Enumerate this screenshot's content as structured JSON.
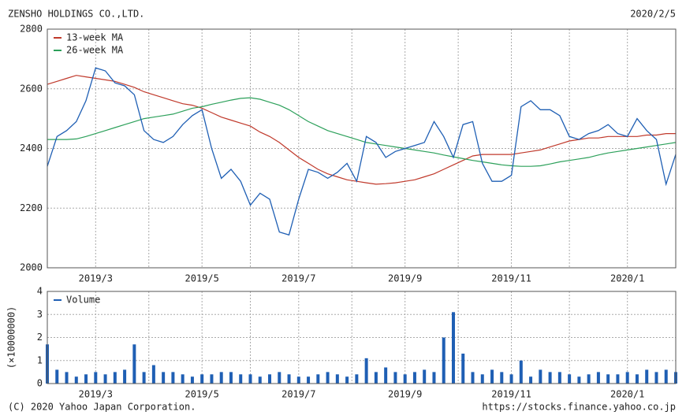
{
  "header": {
    "title": "ZENSHO HOLDINGS CO.,LTD.",
    "date": "2020/2/5"
  },
  "footer": {
    "copyright": "(C) 2020 Yahoo Japan Corporation.",
    "url": "https://stocks.finance.yahoo.co.jp"
  },
  "chart_data": [
    {
      "type": "line",
      "categories": [
        null,
        null,
        null,
        null,
        null,
        "2019/3",
        null,
        null,
        null,
        null,
        null,
        null,
        null,
        null,
        null,
        null,
        "2019/5",
        null,
        null,
        null,
        null,
        null,
        null,
        null,
        null,
        null,
        "2019/7",
        null,
        null,
        null,
        null,
        null,
        null,
        null,
        null,
        null,
        null,
        "2019/9",
        null,
        null,
        null,
        null,
        null,
        null,
        null,
        null,
        null,
        null,
        "2019/11",
        null,
        null,
        null,
        null,
        null,
        null,
        null,
        null,
        null,
        null,
        null,
        "2020/1",
        null,
        null,
        null,
        null,
        null
      ],
      "series": [
        {
          "name": "13-week MA",
          "color": "#c0392b",
          "values": [
            2615,
            2625,
            2635,
            2645,
            2640,
            2635,
            2630,
            2625,
            2615,
            2605,
            2590,
            2580,
            2570,
            2560,
            2550,
            2545,
            2535,
            2520,
            2505,
            2495,
            2485,
            2475,
            2455,
            2440,
            2420,
            2395,
            2370,
            2350,
            2330,
            2315,
            2305,
            2295,
            2290,
            2285,
            2280,
            2282,
            2285,
            2290,
            2295,
            2305,
            2315,
            2330,
            2345,
            2360,
            2375,
            2380,
            2380,
            2380,
            2380,
            2385,
            2390,
            2395,
            2405,
            2415,
            2425,
            2430,
            2435,
            2435,
            2440,
            2440,
            2440,
            2440,
            2445,
            2445,
            2450,
            2450
          ]
        },
        {
          "name": "26-week MA",
          "color": "#2ca05a",
          "values": [
            2430,
            2430,
            2430,
            2432,
            2440,
            2450,
            2460,
            2470,
            2480,
            2490,
            2500,
            2505,
            2510,
            2515,
            2525,
            2535,
            2540,
            2548,
            2555,
            2562,
            2568,
            2570,
            2565,
            2555,
            2545,
            2530,
            2510,
            2490,
            2475,
            2460,
            2450,
            2440,
            2430,
            2420,
            2415,
            2410,
            2405,
            2400,
            2395,
            2390,
            2385,
            2378,
            2372,
            2366,
            2360,
            2355,
            2350,
            2345,
            2342,
            2340,
            2340,
            2342,
            2348,
            2355,
            2360,
            2365,
            2370,
            2378,
            2385,
            2390,
            2395,
            2400,
            2405,
            2410,
            2415,
            2420
          ]
        },
        {
          "color": "#1f5fb4",
          "values": [
            2340,
            2440,
            2460,
            2490,
            2560,
            2670,
            2660,
            2620,
            2610,
            2580,
            2460,
            2430,
            2420,
            2440,
            2480,
            2510,
            2530,
            2400,
            2300,
            2330,
            2290,
            2210,
            2250,
            2230,
            2120,
            2110,
            2230,
            2330,
            2320,
            2300,
            2320,
            2350,
            2290,
            2440,
            2420,
            2370,
            2390,
            2400,
            2410,
            2420,
            2490,
            2440,
            2370,
            2480,
            2490,
            2350,
            2290,
            2290,
            2310,
            2540,
            2560,
            2530,
            2530,
            2510,
            2440,
            2430,
            2450,
            2460,
            2480,
            2450,
            2440,
            2500,
            2460,
            2430,
            2280,
            2380
          ]
        }
      ],
      "ylim": [
        2000,
        2800
      ],
      "yticks": [
        2000,
        2200,
        2400,
        2600,
        2800
      ],
      "grid": true,
      "legend": "top-left"
    },
    {
      "type": "bar",
      "ylabel": "(×10000000)",
      "series": [
        {
          "name": "Volume",
          "color": "#1f5fb4",
          "values": [
            1.7,
            0.6,
            0.5,
            0.3,
            0.4,
            0.5,
            0.4,
            0.5,
            0.6,
            1.7,
            0.5,
            0.8,
            0.5,
            0.5,
            0.4,
            0.3,
            0.4,
            0.4,
            0.5,
            0.5,
            0.4,
            0.4,
            0.3,
            0.4,
            0.5,
            0.4,
            0.3,
            0.3,
            0.4,
            0.5,
            0.4,
            0.3,
            0.4,
            1.1,
            0.5,
            0.7,
            0.5,
            0.4,
            0.5,
            0.6,
            0.5,
            2.0,
            3.1,
            1.3,
            0.5,
            0.4,
            0.6,
            0.5,
            0.4,
            1.0,
            0.3,
            0.6,
            0.5,
            0.5,
            0.4,
            0.3,
            0.4,
            0.5,
            0.4,
            0.4,
            0.5,
            0.4,
            0.6,
            0.5,
            0.6,
            0.5
          ]
        }
      ],
      "ylim": [
        0,
        4
      ],
      "yticks": [
        0,
        1,
        2,
        3,
        4
      ],
      "grid": true,
      "legend": "top-left"
    }
  ]
}
